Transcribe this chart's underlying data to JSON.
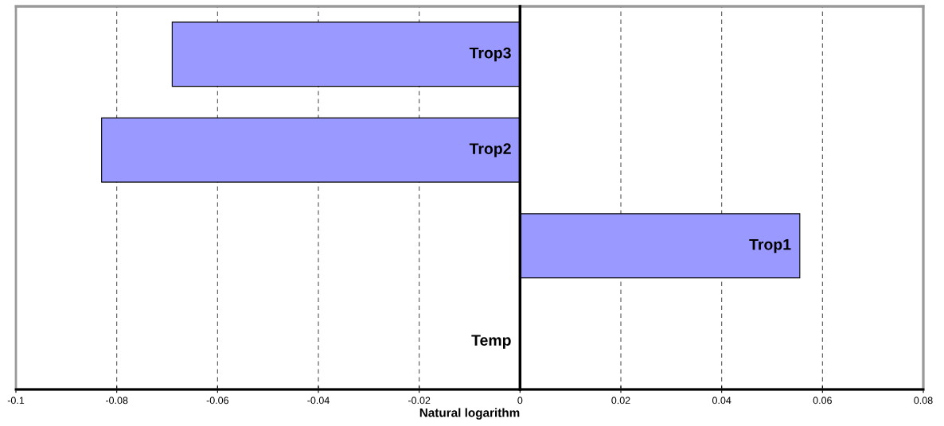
{
  "chart_data": {
    "type": "bar",
    "orientation": "horizontal",
    "xlabel": "Natural logarithm",
    "categories": [
      "Trop3",
      "Trop2",
      "Trop1",
      "Temp"
    ],
    "values": [
      -0.069,
      -0.083,
      0.0555,
      0
    ],
    "color": "#9999ff",
    "xlim": [
      -0.1,
      0.08
    ],
    "xticks": [
      -0.1,
      -0.08,
      -0.06,
      -0.04,
      -0.02,
      0,
      0.02,
      0.04,
      0.06,
      0.08
    ],
    "grid": "x",
    "tick_labels": "x"
  }
}
